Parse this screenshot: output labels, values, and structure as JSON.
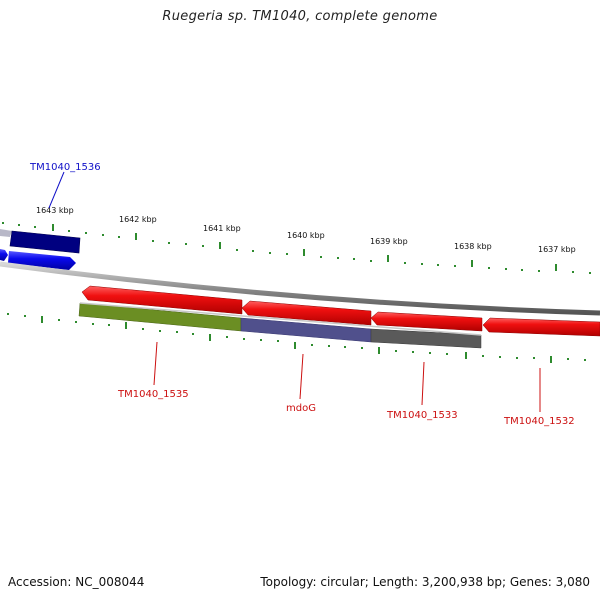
{
  "title": "Ruegeria sp. TM1040, complete genome",
  "footer": {
    "accession": "Accession: NC_008044",
    "summary": "Topology: circular; Length: 3,200,938 bp; Genes: 3,080"
  },
  "ruler": {
    "labels": [
      "1643 kbp",
      "1642 kbp",
      "1641 kbp",
      "1640 kbp",
      "1639 kbp",
      "1638 kbp",
      "1637 kbp"
    ]
  },
  "genes": [
    {
      "name": "TM1040_1536",
      "color": "#1010c8"
    },
    {
      "name": "TM1040_1535",
      "color": "#cc1010"
    },
    {
      "name": "mdoG",
      "color": "#cc1010"
    },
    {
      "name": "TM1040_1533",
      "color": "#cc1010"
    },
    {
      "name": "TM1040_1532",
      "color": "#cc1010"
    }
  ],
  "colors": {
    "tick": "#2e8b2e",
    "forward_gene": "#0a0aee",
    "forward_dark": "#000080",
    "reverse_gene": "#ee1010",
    "orf_green": "#6b8e23",
    "orf_purple": "#50508c",
    "orf_gray": "#5a5a5a",
    "backbone": "#888888"
  }
}
